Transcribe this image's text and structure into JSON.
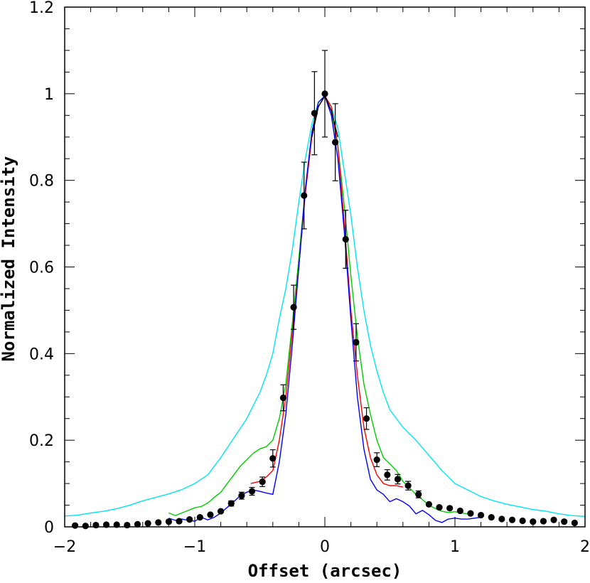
{
  "chart_data": {
    "type": "scatter",
    "title": "",
    "xlabel": "Offset (arcsec)",
    "ylabel": "Normalized Intensity",
    "xlim": [
      -2,
      2
    ],
    "ylim": [
      0,
      1.2
    ],
    "x_ticks": [
      -2,
      -1,
      0,
      1,
      2
    ],
    "x_tick_labels": [
      "−2",
      "−1",
      "0",
      "1",
      "2"
    ],
    "y_ticks": [
      0,
      0.2,
      0.4,
      0.6,
      0.8,
      1,
      1.2
    ],
    "y_tick_labels": [
      "0",
      "0.2",
      "0.4",
      "0.6",
      "0.8",
      "1",
      "1.2"
    ],
    "grid": false,
    "legend": "none",
    "series": [
      {
        "type": "line",
        "color": "#00e5ee",
        "x": [
          -2.0,
          -1.9,
          -1.8,
          -1.7,
          -1.6,
          -1.5,
          -1.4,
          -1.3,
          -1.2,
          -1.1,
          -1.0,
          -0.9,
          -0.8,
          -0.7,
          -0.6,
          -0.5,
          -0.45,
          -0.4,
          -0.35,
          -0.3,
          -0.25,
          -0.2,
          -0.15,
          -0.1,
          -0.05,
          0.0,
          0.05,
          0.1,
          0.15,
          0.2,
          0.25,
          0.3,
          0.35,
          0.4,
          0.45,
          0.5,
          0.6,
          0.7,
          0.8,
          0.9,
          1.0,
          1.1,
          1.2,
          1.3,
          1.4,
          1.5,
          1.6,
          1.7,
          1.8,
          1.9,
          2.0
        ],
        "y": [
          0.025,
          0.027,
          0.032,
          0.036,
          0.042,
          0.05,
          0.06,
          0.068,
          0.076,
          0.086,
          0.1,
          0.12,
          0.16,
          0.205,
          0.25,
          0.31,
          0.35,
          0.4,
          0.48,
          0.55,
          0.64,
          0.75,
          0.85,
          0.93,
          0.98,
          0.995,
          0.97,
          0.92,
          0.82,
          0.72,
          0.6,
          0.5,
          0.42,
          0.36,
          0.31,
          0.27,
          0.23,
          0.2,
          0.165,
          0.13,
          0.1,
          0.085,
          0.07,
          0.06,
          0.052,
          0.046,
          0.04,
          0.036,
          0.03,
          0.026,
          0.024
        ]
      },
      {
        "type": "line",
        "color": "#00cc00",
        "x": [
          -1.2,
          -1.15,
          -1.1,
          -1.05,
          -1.0,
          -0.95,
          -0.9,
          -0.85,
          -0.8,
          -0.75,
          -0.7,
          -0.65,
          -0.6,
          -0.55,
          -0.5,
          -0.45,
          -0.4,
          -0.35,
          -0.3,
          -0.25,
          -0.2,
          -0.15,
          -0.1,
          -0.05,
          0.0,
          0.05,
          0.1,
          0.15,
          0.2,
          0.25,
          0.3,
          0.35,
          0.4,
          0.45,
          0.5,
          0.55,
          0.6,
          0.65,
          0.7,
          0.75,
          0.8,
          0.85,
          0.9,
          0.95,
          1.0,
          1.05,
          1.1
        ],
        "y": [
          0.032,
          0.026,
          0.032,
          0.038,
          0.044,
          0.047,
          0.055,
          0.068,
          0.08,
          0.1,
          0.12,
          0.14,
          0.155,
          0.17,
          0.18,
          0.185,
          0.2,
          0.25,
          0.33,
          0.47,
          0.62,
          0.78,
          0.91,
          0.98,
          0.995,
          0.96,
          0.88,
          0.74,
          0.58,
          0.44,
          0.33,
          0.26,
          0.2,
          0.16,
          0.145,
          0.13,
          0.105,
          0.09,
          0.075,
          0.063,
          0.05,
          0.042,
          0.036,
          0.033,
          0.035,
          0.032,
          0.03
        ]
      },
      {
        "type": "line",
        "color": "#ff0000",
        "x": [
          -0.57,
          -0.5,
          -0.45,
          -0.4,
          -0.35,
          -0.3,
          -0.25,
          -0.2,
          -0.15,
          -0.1,
          -0.05,
          0.0,
          0.05,
          0.1,
          0.15,
          0.2,
          0.25,
          0.3,
          0.35,
          0.4,
          0.45,
          0.5,
          0.55,
          0.6
        ],
        "y": [
          0.1,
          0.105,
          0.115,
          0.13,
          0.2,
          0.3,
          0.45,
          0.6,
          0.77,
          0.9,
          0.97,
          0.995,
          0.97,
          0.88,
          0.7,
          0.5,
          0.35,
          0.23,
          0.16,
          0.12,
          0.1,
          0.095,
          0.095,
          0.092
        ]
      },
      {
        "type": "line",
        "color": "#0000ff",
        "x": [
          -1.2,
          -1.15,
          -1.1,
          -1.05,
          -1.0,
          -0.95,
          -0.9,
          -0.85,
          -0.8,
          -0.75,
          -0.7,
          -0.65,
          -0.6,
          -0.55,
          -0.5,
          -0.45,
          -0.4,
          -0.35,
          -0.3,
          -0.25,
          -0.2,
          -0.15,
          -0.1,
          -0.05,
          0.0,
          0.05,
          0.1,
          0.15,
          0.2,
          0.25,
          0.3,
          0.35,
          0.4,
          0.45,
          0.5,
          0.55,
          0.6,
          0.65,
          0.7,
          0.75,
          0.8,
          0.85,
          0.9,
          0.95,
          1.0,
          1.05,
          1.1,
          1.15,
          1.2
        ],
        "y": [
          0.02,
          0.015,
          0.018,
          0.015,
          0.013,
          0.022,
          0.016,
          0.022,
          0.032,
          0.045,
          0.058,
          0.072,
          0.08,
          0.085,
          0.082,
          0.078,
          0.075,
          0.15,
          0.26,
          0.42,
          0.6,
          0.78,
          0.91,
          0.98,
          0.995,
          0.95,
          0.85,
          0.68,
          0.48,
          0.3,
          0.18,
          0.11,
          0.085,
          0.075,
          0.058,
          0.065,
          0.058,
          0.048,
          0.03,
          0.038,
          0.028,
          0.015,
          0.01,
          0.018,
          0.02,
          0.018,
          0.018,
          0.02,
          0.022
        ]
      },
      {
        "type": "line",
        "color": "#000000",
        "x": [
          -0.1,
          -0.05,
          0.0,
          0.05,
          0.1
        ],
        "y": [
          0.9,
          0.97,
          0.995,
          0.96,
          0.9
        ]
      },
      {
        "type": "scatter",
        "color": "#000000",
        "x": [
          -1.92,
          -1.84,
          -1.76,
          -1.68,
          -1.6,
          -1.52,
          -1.44,
          -1.36,
          -1.28,
          -1.2,
          -1.12,
          -1.04,
          -0.96,
          -0.88,
          -0.8,
          -0.72,
          -0.64,
          -0.56,
          -0.48,
          -0.4,
          -0.32,
          -0.24,
          -0.16,
          -0.08,
          0.0,
          0.08,
          0.16,
          0.24,
          0.32,
          0.4,
          0.48,
          0.56,
          0.64,
          0.72,
          0.8,
          0.88,
          0.96,
          1.04,
          1.12,
          1.2,
          1.28,
          1.36,
          1.44,
          1.52,
          1.6,
          1.68,
          1.76,
          1.84,
          1.92
        ],
        "y": [
          0.003,
          0.002,
          0.004,
          0.005,
          0.005,
          0.004,
          0.006,
          0.008,
          0.01,
          0.012,
          0.013,
          0.017,
          0.022,
          0.028,
          0.036,
          0.054,
          0.072,
          0.082,
          0.104,
          0.158,
          0.298,
          0.507,
          0.765,
          0.955,
          1.0,
          0.888,
          0.664,
          0.426,
          0.25,
          0.155,
          0.12,
          0.11,
          0.095,
          0.075,
          0.052,
          0.045,
          0.043,
          0.037,
          0.031,
          0.027,
          0.022,
          0.018,
          0.016,
          0.014,
          0.012,
          0.013,
          0.016,
          0.012,
          0.009
        ],
        "yerr": [
          0,
          0,
          0,
          0,
          0,
          0,
          0,
          0,
          0,
          0,
          0,
          0,
          0,
          0,
          0,
          0.006,
          0.008,
          0.009,
          0.011,
          0.02,
          0.03,
          0.051,
          0.077,
          0.096,
          0.1,
          0.089,
          0.067,
          0.043,
          0.025,
          0.016,
          0.012,
          0.011,
          0.01,
          0.008,
          0,
          0,
          0,
          0,
          0,
          0,
          0,
          0,
          0,
          0,
          0,
          0,
          0,
          0,
          0
        ]
      }
    ]
  }
}
